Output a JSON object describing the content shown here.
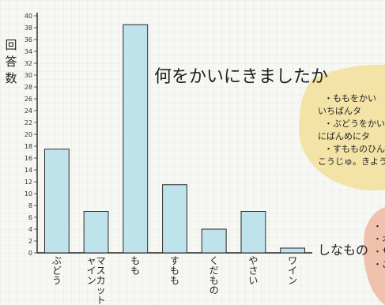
{
  "chart_data": {
    "type": "bar",
    "title": "何をかいにきましたか",
    "ylabel": "回答数",
    "xlabel": "しなもの",
    "ylim": [
      0,
      40
    ],
    "yticks": [
      0,
      2,
      4,
      6,
      8,
      10,
      12,
      14,
      16,
      18,
      20,
      22,
      24,
      26,
      28,
      30,
      32,
      34,
      36,
      38,
      40
    ],
    "categories": [
      "ぶどう",
      "マスカットシャイン",
      "もも",
      "すもも",
      "くだもの",
      "やさい",
      "ワイン"
    ],
    "values": [
      17.5,
      7,
      38.5,
      11.5,
      4,
      7,
      0.8
    ],
    "grid": true,
    "bar_color": "#bfe3ea"
  },
  "notes": {
    "top_lines": [
      "・ももをかい",
      "いちばんタ",
      "・ぶどうをかい",
      "にばんめにタ",
      "・すもものひんし",
      "こうじゅ。きよう"
    ],
    "bottom_lines": [
      "・",
      "・オ",
      "・サ",
      "・ご"
    ],
    "top_color": "#f3e3a6",
    "bottom_color": "#f0c2ae"
  }
}
